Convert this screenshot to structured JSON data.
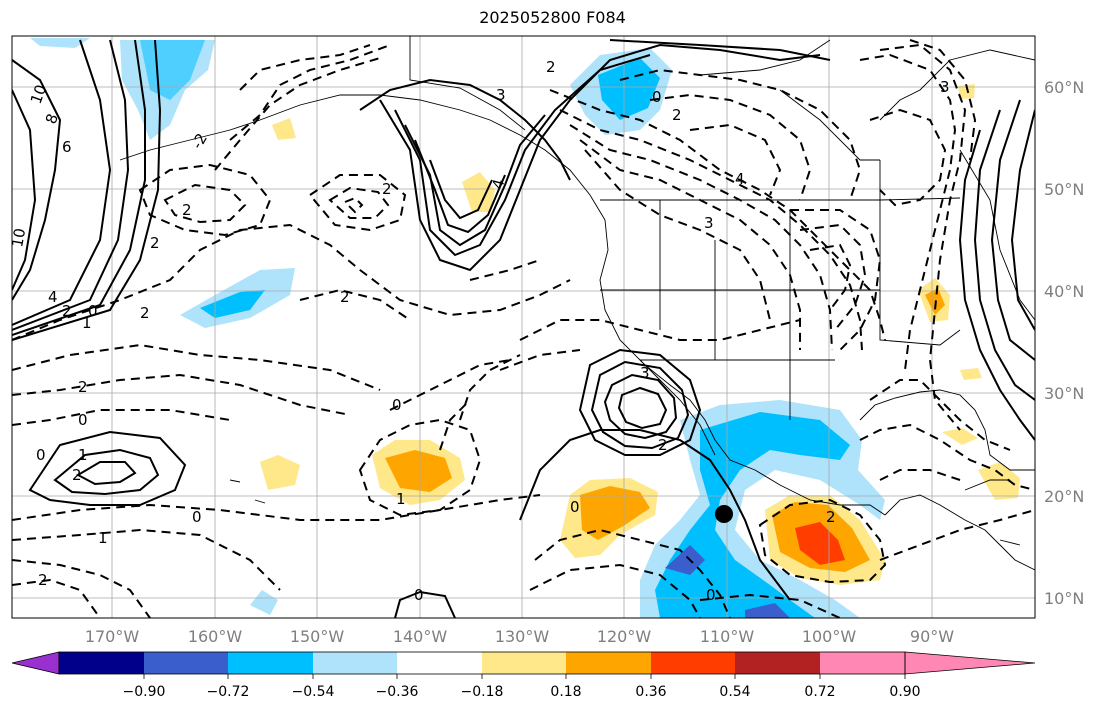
{
  "title": "2025052800 F084",
  "map": {
    "lon_labels": [
      "170°W",
      "160°W",
      "150°W",
      "140°W",
      "130°W",
      "120°W",
      "110°W",
      "100°W",
      "90°W"
    ],
    "lat_labels": [
      "60°N",
      "50°N",
      "40°N",
      "30°N",
      "20°N",
      "10°N"
    ],
    "contour_labels": [
      "10",
      "8",
      "6",
      "10",
      "4",
      "2",
      "0",
      "2",
      "2",
      "1",
      "2",
      "0",
      "2",
      "0",
      "1",
      "2",
      "0",
      "1",
      "2",
      "-2",
      "2",
      "3",
      "4",
      "2",
      "0",
      "2",
      "4",
      "3",
      "3",
      "2",
      "0",
      "0",
      "2",
      "0",
      "2",
      "1",
      "3",
      "0"
    ],
    "marker": "black-dot"
  },
  "colorbar": {
    "tick_labels": [
      "−0.90",
      "−0.72",
      "−0.54",
      "−0.36",
      "−0.18",
      "0.18",
      "0.36",
      "0.54",
      "0.72",
      "0.90"
    ],
    "colors": [
      "#9b30d0",
      "#00008b",
      "#3a5fcd",
      "#00bfff",
      "#aee3fb",
      "#ffffff",
      "#ffe88a",
      "#ffa500",
      "#ff3d00",
      "#b22222",
      "#ff87b4"
    ]
  }
}
